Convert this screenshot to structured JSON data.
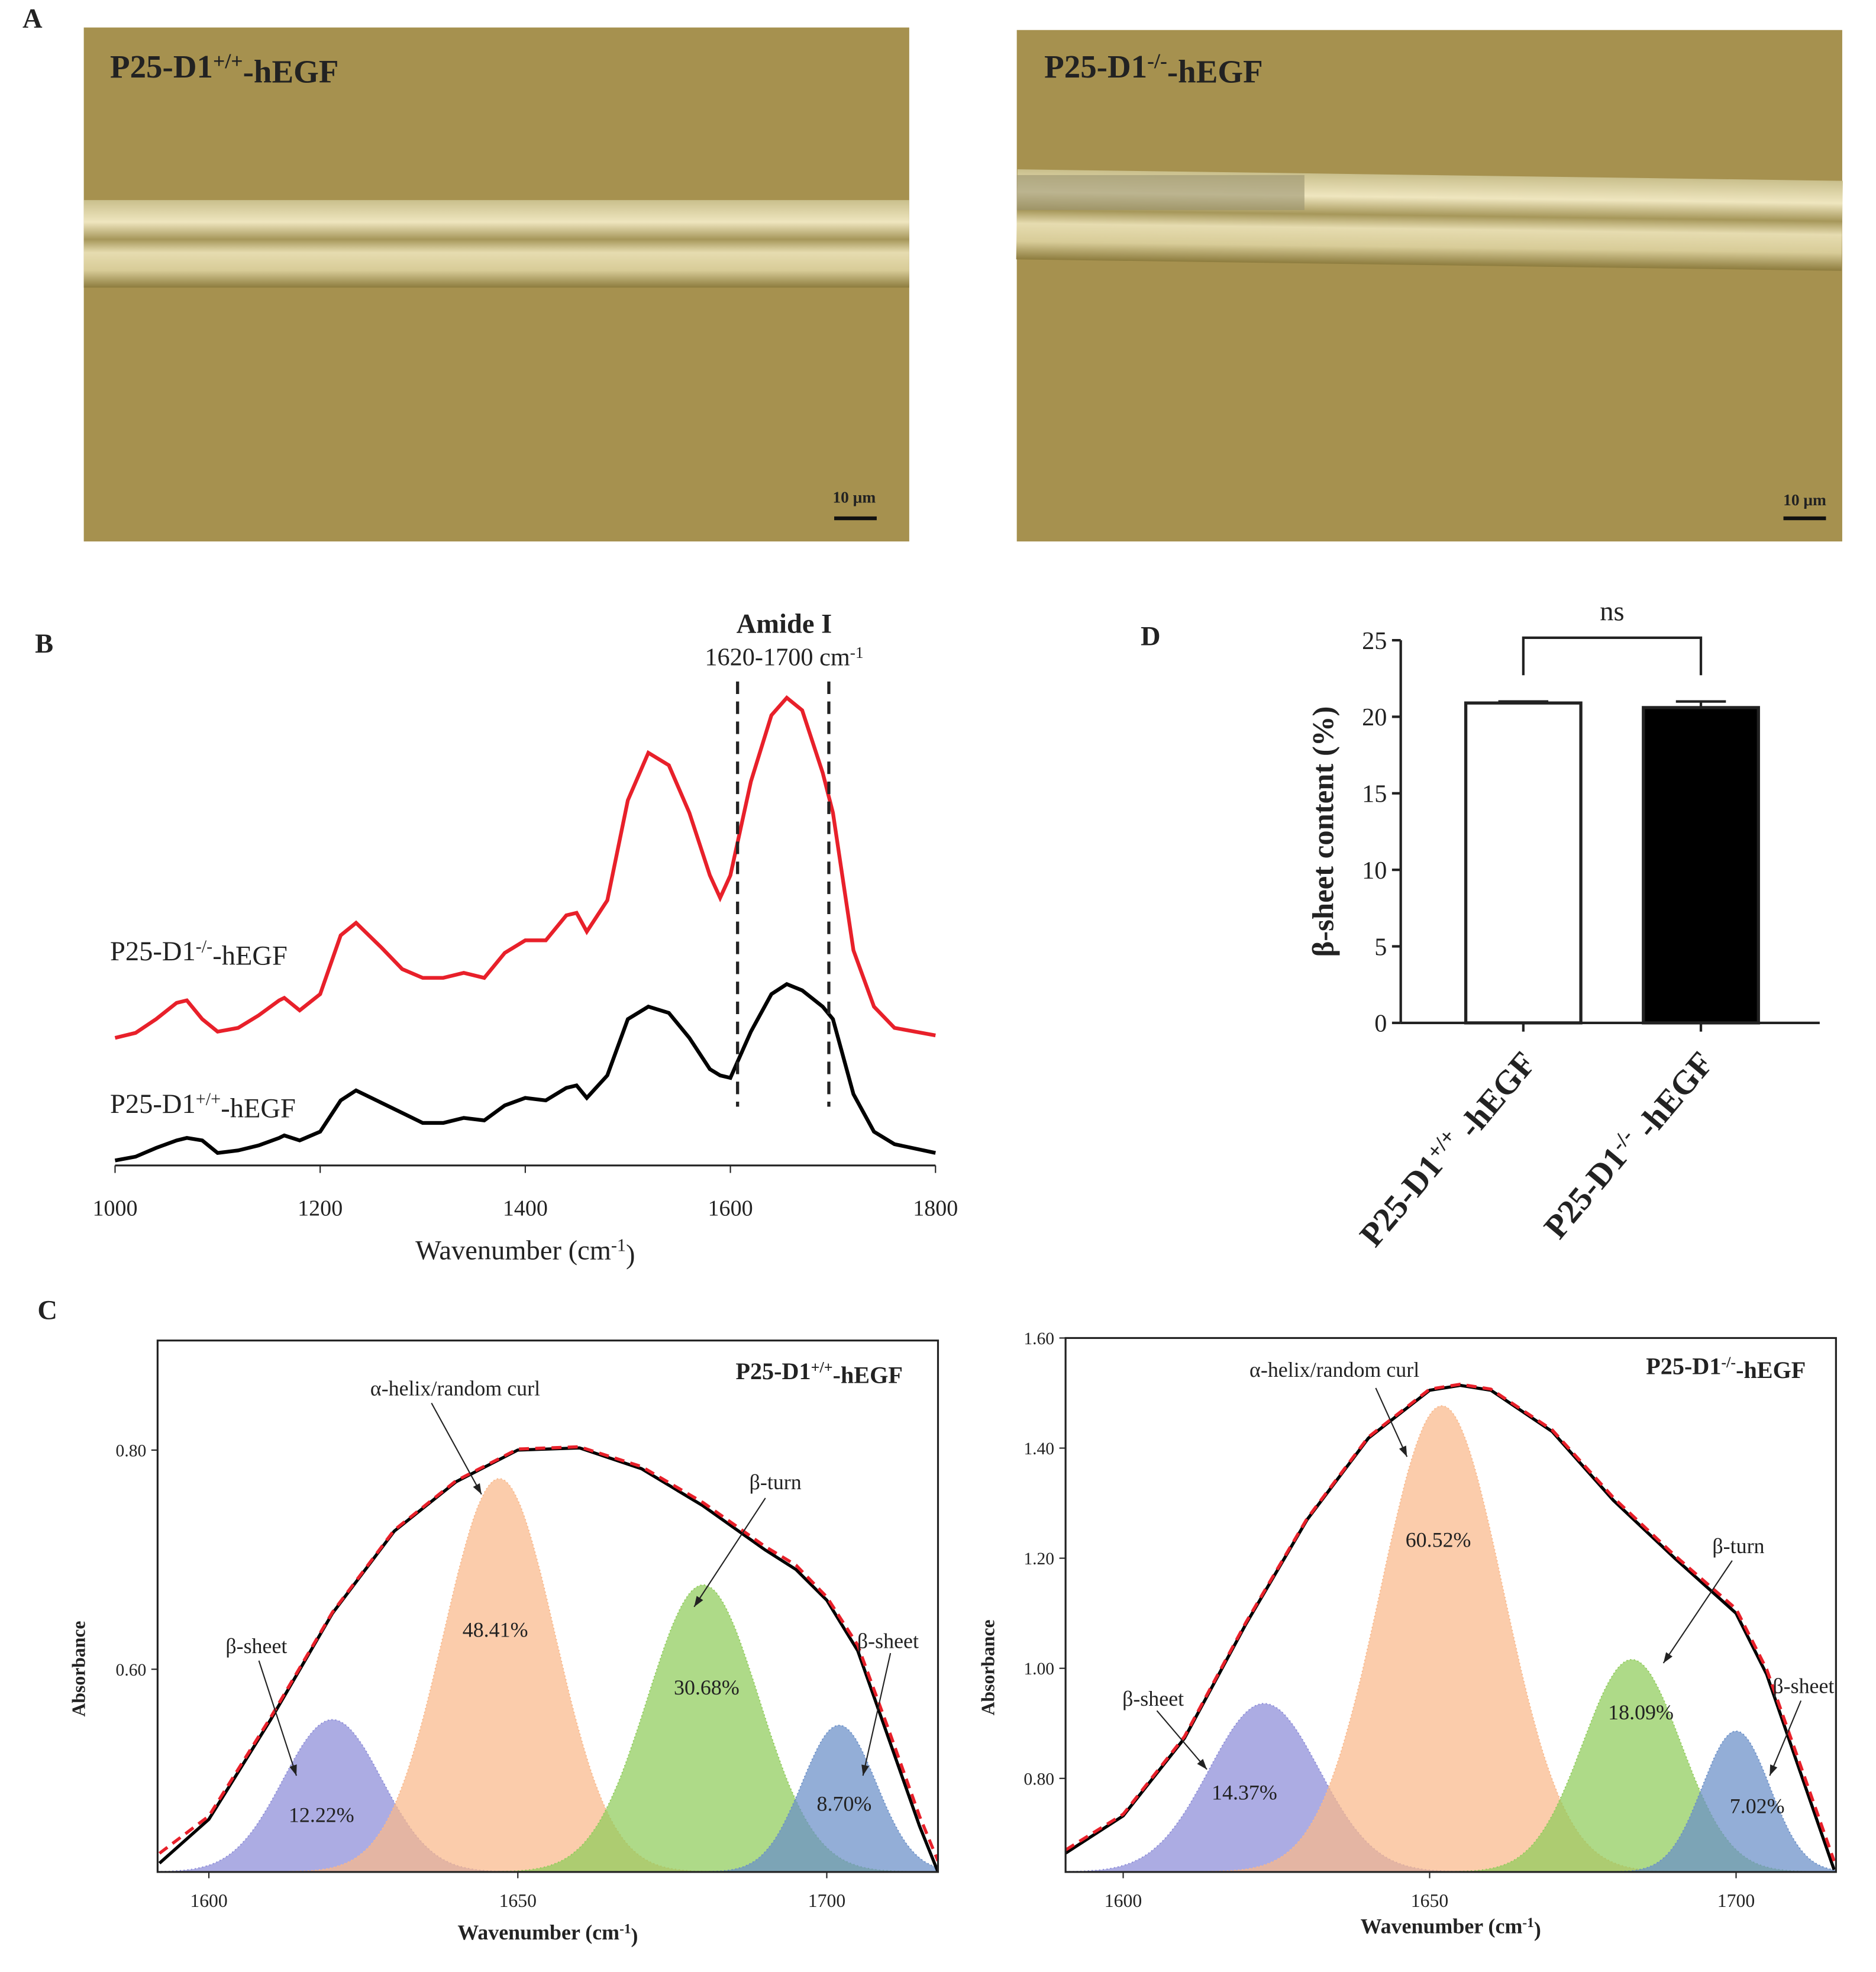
{
  "figure": {
    "letters": [
      "A",
      "B",
      "C",
      "D"
    ],
    "micrographs": [
      {
        "label": {
          "text": "P25-D1",
          "sup": "+/+",
          "tail": "-hEGF"
        },
        "scale": "10 μm"
      },
      {
        "label": {
          "text": "P25-D1",
          "sup": "-/-",
          "tail": "-hEGF"
        },
        "scale": "10 μm"
      }
    ]
  },
  "chart_data": [
    {
      "type": "line",
      "xlabel": {
        "text": "Wavenumber (cm",
        "sup": "-1",
        "tail": ")"
      },
      "xlim": [
        1000,
        1800
      ],
      "xticks": [
        1000,
        1200,
        1400,
        1600,
        1800
      ],
      "x": [
        1000,
        1020,
        1040,
        1060,
        1070,
        1085,
        1100,
        1120,
        1140,
        1160,
        1165,
        1180,
        1200,
        1220,
        1235,
        1260,
        1280,
        1300,
        1320,
        1340,
        1360,
        1380,
        1400,
        1420,
        1440,
        1450,
        1460,
        1480,
        1500,
        1520,
        1540,
        1560,
        1580,
        1590,
        1600,
        1620,
        1640,
        1655,
        1670,
        1690,
        1700,
        1720,
        1740,
        1760,
        1800
      ],
      "series": [
        {
          "name": {
            "text": "P25-D1",
            "sup": "+/+",
            "tail": "-hEGF"
          },
          "color": "#000000",
          "values": [
            4,
            7,
            14,
            20,
            22,
            20,
            10,
            12,
            16,
            22,
            24,
            20,
            27,
            52,
            60,
            50,
            42,
            34,
            34,
            38,
            36,
            48,
            54,
            52,
            62,
            64,
            54,
            72,
            117,
            127,
            122,
            102,
            77,
            72,
            70,
            107,
            137,
            145,
            140,
            127,
            117,
            57,
            27,
            17,
            10
          ]
        },
        {
          "name": {
            "text": "P25-D1",
            "sup": "-/-",
            "tail": "-hEGF"
          },
          "color": "#e8202a",
          "values": [
            102,
            106,
            117,
            130,
            132,
            117,
            107,
            110,
            120,
            132,
            134,
            124,
            137,
            184,
            194,
            174,
            157,
            150,
            150,
            154,
            150,
            170,
            180,
            180,
            200,
            202,
            187,
            212,
            292,
            330,
            320,
            282,
            232,
            214,
            232,
            307,
            360,
            374,
            364,
            314,
            282,
            172,
            127,
            110,
            104
          ]
        }
      ],
      "annotation": {
        "title": "Amide I",
        "range": {
          "text": "1620-1700 cm",
          "sup": "-1"
        },
        "lines": [
          1607,
          1696
        ]
      }
    },
    {
      "type": "peak-fit",
      "title": {
        "text": "P25-D1",
        "sup": "+/+",
        "tail": "-hEGF"
      },
      "xlabel": {
        "text": "Wavenumber (cm",
        "sup": "-1",
        "tail": ")"
      },
      "ylabel": "Absorbance",
      "xlim": [
        1591.7,
        1718
      ],
      "ylim": [
        0.415,
        0.9
      ],
      "xticks": [
        1600,
        1650,
        1700
      ],
      "yticks": [
        {
          "value": 0.6,
          "label": "0.60"
        },
        {
          "value": 0.8,
          "label": "0.80"
        }
      ],
      "x": [
        1592,
        1600,
        1610,
        1620,
        1630,
        1640,
        1650,
        1660,
        1670,
        1680,
        1690,
        1695,
        1700,
        1705,
        1710,
        1715,
        1718
      ],
      "series": [
        {
          "color": "#000000",
          "values": [
            0.423,
            0.463,
            0.554,
            0.651,
            0.726,
            0.771,
            0.8,
            0.802,
            0.783,
            0.749,
            0.709,
            0.691,
            0.663,
            0.617,
            0.537,
            0.457,
            0.415
          ]
        },
        {
          "color": "#e8202a",
          "dashed": true,
          "values": [
            0.432,
            0.466,
            0.556,
            0.652,
            0.727,
            0.772,
            0.801,
            0.803,
            0.785,
            0.752,
            0.712,
            0.695,
            0.666,
            0.622,
            0.545,
            0.466,
            0.425
          ]
        }
      ],
      "peaks": [
        {
          "name": "β-sheet",
          "share_label": "12.22%",
          "center": 1620,
          "height": 0.554,
          "sigma": 8,
          "color": "#8c8cd8"
        },
        {
          "name": "α-helix/random curl",
          "share_label": "48.41%",
          "center": 1647,
          "height": 0.774,
          "sigma": 9,
          "color": "#f9b88a"
        },
        {
          "name": "β-turn",
          "share_label": "30.68%",
          "center": 1680,
          "height": 0.677,
          "sigma": 9,
          "color": "#8fcc5a"
        },
        {
          "name": "β-sheet",
          "share_label": "8.70%",
          "center": 1702,
          "height": 0.549,
          "sigma": 6,
          "color": "#6a8fc8"
        }
      ]
    },
    {
      "type": "peak-fit",
      "title": {
        "text": "P25-D1",
        "sup": "-/-",
        "tail": "-hEGF"
      },
      "xlabel": {
        "text": "Wavenumber (cm",
        "sup": "-1",
        "tail": ")"
      },
      "ylabel": "Absorbance",
      "xlim": [
        1590.6,
        1716.3
      ],
      "ylim": [
        0.63,
        1.6
      ],
      "xticks": [
        1600,
        1650,
        1700
      ],
      "yticks": [
        {
          "value": 0.8,
          "label": "0.80"
        },
        {
          "value": 1.0,
          "label": "1.00"
        },
        {
          "value": 1.2,
          "label": "1.20"
        },
        {
          "value": 1.4,
          "label": "1.40"
        },
        {
          "value": 1.6,
          "label": "1.60"
        }
      ],
      "x": [
        1590.6,
        1600,
        1610,
        1620,
        1630,
        1640,
        1650,
        1655,
        1660,
        1670,
        1680,
        1690,
        1700,
        1705,
        1710,
        1716
      ],
      "series": [
        {
          "color": "#000000",
          "values": [
            0.664,
            0.732,
            0.873,
            1.08,
            1.27,
            1.418,
            1.505,
            1.514,
            1.505,
            1.43,
            1.305,
            1.2,
            1.1,
            0.989,
            0.827,
            0.634
          ]
        },
        {
          "color": "#e8202a",
          "dashed": true,
          "values": [
            0.67,
            0.735,
            0.876,
            1.083,
            1.272,
            1.42,
            1.507,
            1.516,
            1.507,
            1.433,
            1.31,
            1.205,
            1.108,
            0.998,
            0.84,
            0.65
          ]
        }
      ],
      "peaks": [
        {
          "name": "β-sheet",
          "share_label": "14.37%",
          "center": 1623,
          "height": 0.936,
          "sigma": 9,
          "color": "#8c8cd8"
        },
        {
          "name": "α-helix/random curl",
          "share_label": "60.52%",
          "center": 1652,
          "height": 1.477,
          "sigma": 10,
          "color": "#f9b88a"
        },
        {
          "name": "β-turn",
          "share_label": "18.09%",
          "center": 1683,
          "height": 1.016,
          "sigma": 8,
          "color": "#8fcc5a"
        },
        {
          "name": "β-sheet",
          "share_label": "7.02%",
          "center": 1700,
          "height": 0.886,
          "sigma": 5.5,
          "color": "#6a8fc8"
        }
      ]
    },
    {
      "type": "bar",
      "ylabel": "β-sheet content (%)",
      "ylim": [
        0,
        25
      ],
      "yticks": [
        0,
        5,
        10,
        15,
        20,
        25
      ],
      "categories": [
        {
          "text": "P25-D1",
          "sup": "+/+",
          "tail": " -hEGF"
        },
        {
          "text": "P25-D1",
          "sup": "-/-",
          "tail": " -hEGF"
        }
      ],
      "values": [
        20.9,
        20.6
      ],
      "errors": [
        0.1,
        0.4
      ],
      "colors": [
        "#ffffff",
        "#000000"
      ],
      "annotation": "ns"
    }
  ]
}
